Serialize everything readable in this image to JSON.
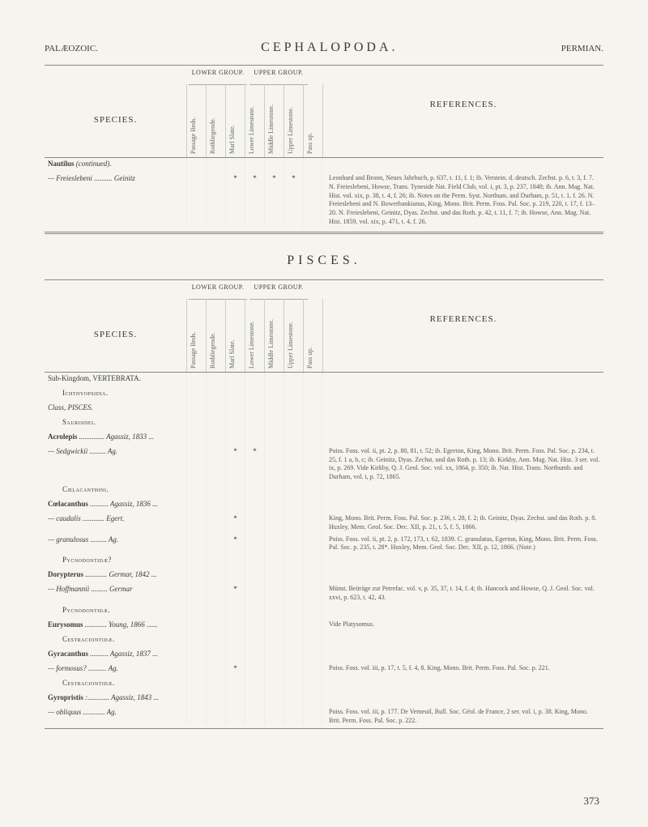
{
  "header": {
    "left": "PALÆOZOIC.",
    "center": "CEPHALOPODA.",
    "right": "PERMIAN."
  },
  "group_headers": {
    "lower": "LOWER GROUP.",
    "upper": "UPPER GROUP."
  },
  "column_labels": {
    "species": "SPECIES.",
    "refs": "REFERENCES.",
    "cols": [
      "Passage Beds.",
      "Rothliegende.",
      "Marl Slate.",
      "Lower Limestone.",
      "Middle Limestone.",
      "Upper Limestone.",
      "Pass up."
    ]
  },
  "ceph_rows": [
    {
      "label": "Nautilus (continued).",
      "type": "genus"
    },
    {
      "label": "— Freieslebeni .......... Geinitz",
      "ticks": [
        "",
        "",
        "*",
        "*",
        "*",
        "*",
        ""
      ],
      "ref": "Leonhard and Bronn, Neues Jahrbuch, p. 637, t. 11, f. 1; ib. Verstein. d. deutsch. Zechst. p. 6, t. 3, f. 7. N. Freieslebeni, Howse, Trans. Tyneside Nat. Field Club, vol. i, pt. 3, p. 237, 1848; ib. Ann. Mag. Nat. Hist. vol. xix, p. 38, t. 4, f. 26; ib. Notes on the Perm. Syst. Northum. and Durham, p. 51, t. 1, f. 26. N. Freieslebeni and N. Bowerbankianus, King, Mono. Brit. Perm. Foss. Pal. Soc. p. 219, 220, t. 17, f. 13–20. N. Freieslebeni, Geinitz, Dyas. Zechst. und das Roth. p. 42, t. 11, f. 7; ib. Howse, Ann. Mag. Nat. Hist. 1859, vol. xix, p. 471, t. 4, f. 26."
    }
  ],
  "pisces_title": "PISCES.",
  "pisces_rows": [
    {
      "label": "Sub-Kingdom, VERTEBRATA.",
      "type": "heading"
    },
    {
      "label": "Ichthyopsidia.",
      "type": "subheading",
      "indent": 1
    },
    {
      "label": "Class, PISCES.",
      "type": "class"
    },
    {
      "label": "Sauroidei.",
      "type": "subheading",
      "indent": 1
    },
    {
      "label": "Acrolepis .............. Agassiz, 1833 ...",
      "type": "genus"
    },
    {
      "label": "— Sedgwickii ......... Ag.",
      "ticks": [
        "",
        "",
        "*",
        "*",
        "",
        "",
        ""
      ],
      "ref": "Poiss. Foss. vol. ii, pt. 2, p. 80, 81, t. 52; ib. Egerton, King, Mono. Brit. Perm. Foss. Pal. Soc. p. 234, t. 25, f. 1 a, b, c; ib. Geinitz, Dyas. Zechst. und das Roth. p. 13; ib. Kirkby, Ann. Mag. Nat. Hist. 3 ser. vol. ix, p. 269. Vide Kirkby, Q. J. Geol. Soc. vol. xx, 1864, p. 350; ib. Nat. Hist. Trans. Northumb. and Durham, vol. i, p. 72, 1865."
    },
    {
      "label": "Cœlacanthini.",
      "type": "subheading",
      "indent": 1
    },
    {
      "label": "Cœlacanthus .......... Agassiz, 1836 ...",
      "type": "genus"
    },
    {
      "label": "— caudalis ............ Egert.",
      "ticks": [
        "",
        "",
        "*",
        "",
        "",
        "",
        ""
      ],
      "ref": "King, Mono. Brit. Perm. Foss. Pal. Soc. p. 236, t. 28, f. 2; ib. Geinitz, Dyas. Zechst. und das Roth. p. 8. Huxley, Mem. Geol. Soc. Dec. XII, p. 21, t. 5, f. 5, 1866."
    },
    {
      "label": "— granulosus ......... Ag.",
      "ticks": [
        "",
        "",
        "*",
        "",
        "",
        "",
        ""
      ],
      "ref": "Poiss. Foss. vol. ii, pt. 2, p. 172, 173, t. 62, 1839. C. granulatus, Egerton, King, Mono. Brit. Perm. Foss. Pal. Soc. p. 235, t. 28*. Huxley, Mem. Geol. Soc. Dec. XII, p. 12, 1866. (Note.)"
    },
    {
      "label": "Pycnodontidæ?",
      "type": "subheading",
      "indent": 1
    },
    {
      "label": "Dorypterus ............ Germar, 1842 ...",
      "type": "genus"
    },
    {
      "label": "— Hoffmannii ......... Germar",
      "ticks": [
        "",
        "",
        "*",
        "",
        "",
        "",
        ""
      ],
      "ref": "Münst. Beiträge zur Petrefac. vol. v, p. 35, 37, t. 14, f. 4; ib. Hancock and Howse, Q. J. Geol. Soc. vol. xxvi, p. 623, t. 42, 43."
    },
    {
      "label": "Pycnodontidæ.",
      "type": "subheading",
      "indent": 1
    },
    {
      "label": "Eurysomus ............ Young, 1866 ......",
      "type": "genus",
      "ref": "Vide Platysomus."
    },
    {
      "label": "Cestraciontidæ.",
      "type": "subheading",
      "indent": 1
    },
    {
      "label": "Gyracanthus .......... Agassiz, 1837 ...",
      "type": "genus"
    },
    {
      "label": "— formosus? .......... Ag.",
      "ticks": [
        "",
        "",
        "*",
        "",
        "",
        "",
        ""
      ],
      "ref": "Poiss. Foss. vol. iii, p. 17, t. 5, f. 4, 8. King, Mono. Brit. Perm. Foss. Pal. Soc. p. 221."
    },
    {
      "label": "Cestraciontidæ.",
      "type": "subheading",
      "indent": 1
    },
    {
      "label": "Gyropristis :............ Agassiz, 1843 ...",
      "type": "genus"
    },
    {
      "label": "— obliquus ............ Ag.",
      "ref": "Poiss. Foss. vol. iii, p. 177. De Verneuil, Bull. Soc. Géol. de France, 2 ser. vol. i, p. 38. King, Mono. Brit. Perm. Foss. Pal. Soc. p. 222."
    }
  ],
  "page_number": "373"
}
